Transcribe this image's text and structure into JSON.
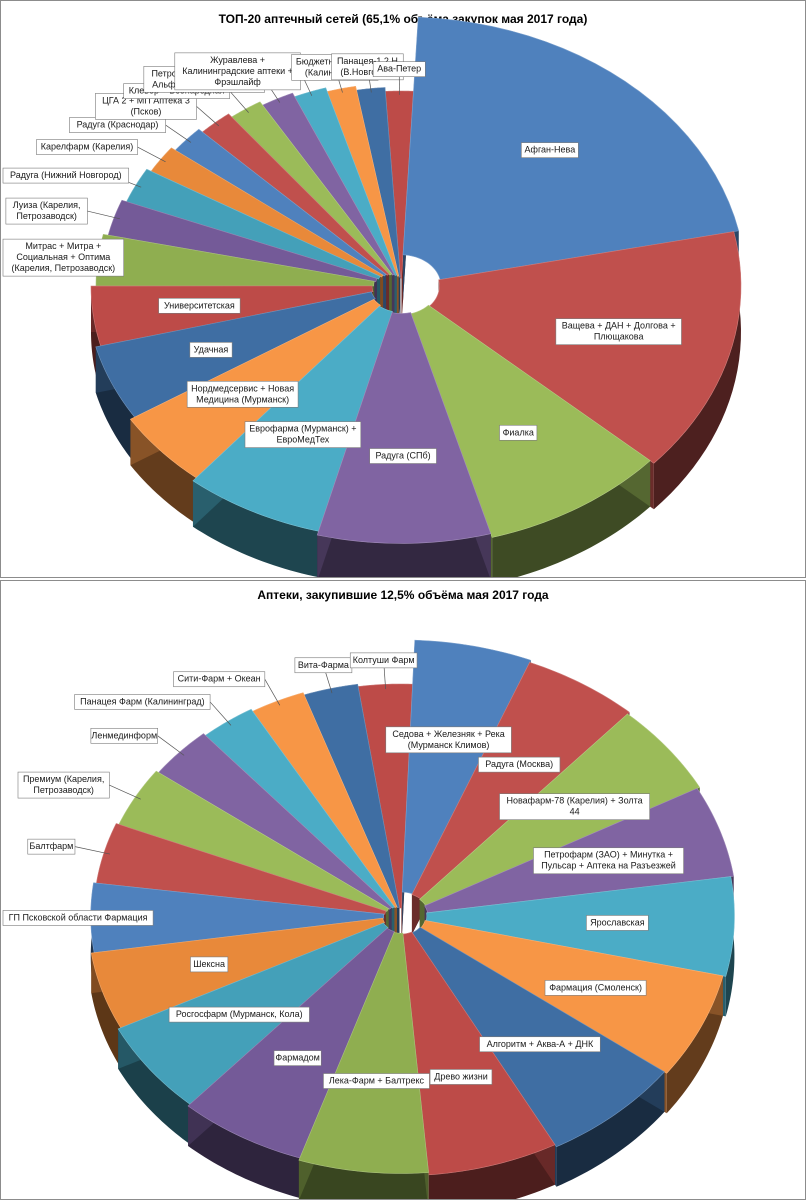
{
  "chart_data": [
    {
      "type": "pie",
      "title": "ТОП-20 аптечный сетей (65,1% объёма закупок мая 2017 года)",
      "categories": [
        "Афган-Нева",
        "Ващева + ДАН + Долгова + Плющакова",
        "Фиалка",
        "Радуга (СПб)",
        "Еврофарма (Мурманск) + ЕвроМедТех",
        "Нордмедсервис + Новая Медицина (Мурманск)",
        "Удачная",
        "Университетская",
        "Митрас + Митра + Социальная + Оптима (Карелия, Петрозаводск)",
        "Луиза (Карелия, Петрозаводск)",
        "Радуга (Нижний Новгород)",
        "Карелфарм (Карелия)",
        "Радуга (Краснодар)",
        "ЦГА 2 + МП Аптека 3 (Псков)",
        "Клевер + Всенародная",
        "Петробель + Петроторг + Альфа-Фарм + Единство",
        "Журавлева + Калининградские аптеки + Фрэшлайф",
        "Бюджетная аптека (Калининград)",
        "Панацея-1,2,Н (В.Новгород)",
        "Ава-Петер"
      ],
      "values": [
        21,
        15,
        9,
        8.5,
        7,
        5,
        5,
        4,
        3.5,
        2.5,
        2.5,
        2,
        2,
        2,
        2,
        2,
        2,
        1.8,
        1.8,
        1.8
      ]
    },
    {
      "type": "pie",
      "title": "Аптеки, закупившие 12,5% объёма мая 2017 года",
      "categories": [
        "Седова + Железняк + Река (Мурманск Климов)",
        "Радуга (Москва)",
        "Новафарм-78 (Карелия) + Золта 44",
        "Петрофарм (ЗАО) + Минутка + Пульсар + Аптека на Разъезжей",
        "Ярославская",
        "Фармация (Смоленск)",
        "Алгоритм + Аква-А + ДНК",
        "Древо жизни",
        "Лека-Фарм + Балтрекс",
        "Фармадом",
        "Росгосфарм (Мурманск, Кола)",
        "Шексна",
        "ГП Псковской области Фармация",
        "Балтфарм",
        "Премиум (Карелия, Петрозаводск)",
        "Ленмединформ",
        "Панацея Фарм (Калининград)",
        "Сити-Фарм + Океан",
        "Вита-Фарма",
        "Колтуши Фарм"
      ],
      "values": [
        5.5,
        5.5,
        5.5,
        5.5,
        6,
        6.5,
        7,
        6.5,
        6.5,
        6.5,
        6,
        5,
        4.5,
        4,
        4,
        3.5,
        3,
        3,
        3,
        3
      ]
    }
  ]
}
